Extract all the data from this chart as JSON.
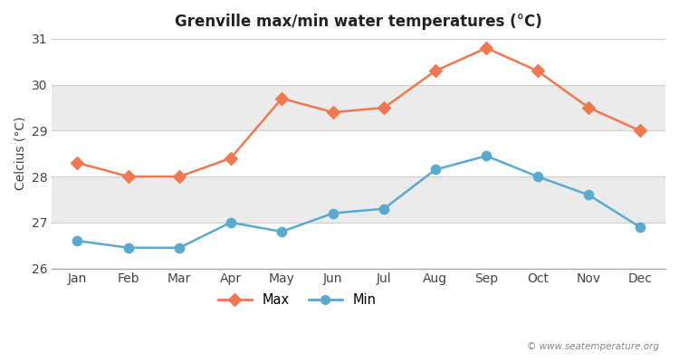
{
  "title": "Grenville max/min water temperatures (°C)",
  "ylabel": "Celcius (°C)",
  "months": [
    "Jan",
    "Feb",
    "Mar",
    "Apr",
    "May",
    "Jun",
    "Jul",
    "Aug",
    "Sep",
    "Oct",
    "Nov",
    "Dec"
  ],
  "max_temps": [
    28.3,
    28.0,
    28.0,
    28.4,
    29.7,
    29.4,
    29.5,
    30.3,
    30.8,
    30.3,
    29.5,
    29.0
  ],
  "min_temps": [
    26.6,
    26.45,
    26.45,
    27.0,
    26.8,
    27.2,
    27.3,
    28.15,
    28.45,
    28.0,
    27.6,
    26.9
  ],
  "max_color": "#f07850",
  "min_color": "#5aaad0",
  "bg_color": "#ffffff",
  "plot_bg_color": "#ffffff",
  "band_color": "#ebebeb",
  "ylim_min": 26,
  "ylim_max": 31,
  "yticks": [
    26,
    27,
    28,
    29,
    30,
    31
  ],
  "watermark": "© www.seatemperature.org",
  "legend_max": "Max",
  "legend_min": "Min"
}
